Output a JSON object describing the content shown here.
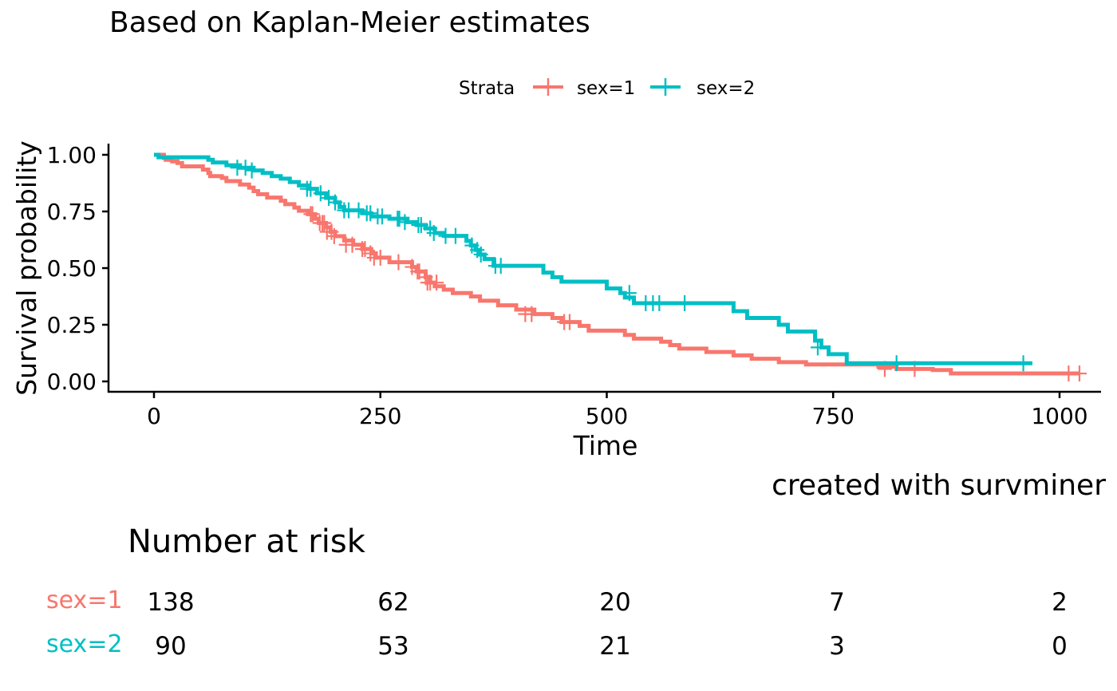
{
  "title": "Based on Kaplan-Meier estimates",
  "caption": "created with survminer",
  "chart_data": {
    "type": "line",
    "subtype": "kaplan-meier-step",
    "xlabel": "Time",
    "ylabel": "Survival probability",
    "xlim": [
      0,
      1022
    ],
    "ylim": [
      0,
      1
    ],
    "x_ticks": [
      0,
      250,
      500,
      750,
      1000
    ],
    "x_tick_labels": [
      "0",
      "250",
      "500",
      "750",
      "1000"
    ],
    "y_ticks": [
      0,
      0.25,
      0.5,
      0.75,
      1.0
    ],
    "y_tick_labels": [
      "0.00",
      "0.25",
      "0.50",
      "0.75",
      "1.00"
    ],
    "grid": false,
    "legend": {
      "title": "Strata",
      "position": "top",
      "entries": [
        "sex=1",
        "sex=2"
      ]
    },
    "colors": {
      "sex=1": "#F8766D",
      "sex=2": "#00BFC4"
    },
    "series": [
      {
        "name": "sex=1",
        "color": "#F8766D",
        "steps": [
          [
            0,
            1.0
          ],
          [
            11,
            0.986
          ],
          [
            13,
            0.978
          ],
          [
            20,
            0.971
          ],
          [
            26,
            0.964
          ],
          [
            31,
            0.949
          ],
          [
            54,
            0.935
          ],
          [
            60,
            0.92
          ],
          [
            62,
            0.906
          ],
          [
            75,
            0.898
          ],
          [
            80,
            0.884
          ],
          [
            95,
            0.869
          ],
          [
            105,
            0.855
          ],
          [
            110,
            0.84
          ],
          [
            115,
            0.826
          ],
          [
            125,
            0.811
          ],
          [
            140,
            0.797
          ],
          [
            145,
            0.782
          ],
          [
            155,
            0.767
          ],
          [
            160,
            0.753
          ],
          [
            170,
            0.738
          ],
          [
            178,
            0.718
          ],
          [
            182,
            0.699
          ],
          [
            190,
            0.68
          ],
          [
            195,
            0.66
          ],
          [
            200,
            0.641
          ],
          [
            210,
            0.622
          ],
          [
            220,
            0.603
          ],
          [
            230,
            0.584
          ],
          [
            240,
            0.565
          ],
          [
            245,
            0.546
          ],
          [
            260,
            0.526
          ],
          [
            285,
            0.505
          ],
          [
            290,
            0.485
          ],
          [
            300,
            0.46
          ],
          [
            305,
            0.436
          ],
          [
            310,
            0.42
          ],
          [
            320,
            0.405
          ],
          [
            330,
            0.39
          ],
          [
            350,
            0.375
          ],
          [
            360,
            0.356
          ],
          [
            380,
            0.336
          ],
          [
            400,
            0.317
          ],
          [
            420,
            0.297
          ],
          [
            440,
            0.28
          ],
          [
            450,
            0.262
          ],
          [
            470,
            0.245
          ],
          [
            480,
            0.224
          ],
          [
            520,
            0.205
          ],
          [
            530,
            0.189
          ],
          [
            560,
            0.175
          ],
          [
            570,
            0.16
          ],
          [
            580,
            0.145
          ],
          [
            610,
            0.13
          ],
          [
            640,
            0.115
          ],
          [
            660,
            0.1
          ],
          [
            690,
            0.085
          ],
          [
            720,
            0.075
          ],
          [
            800,
            0.065
          ],
          [
            820,
            0.055
          ],
          [
            860,
            0.05
          ],
          [
            880,
            0.035
          ],
          [
            1022,
            0.035
          ]
        ],
        "censored": [
          [
            173,
            0.738
          ],
          [
            175,
            0.738
          ],
          [
            183,
            0.699
          ],
          [
            186,
            0.699
          ],
          [
            188,
            0.699
          ],
          [
            191,
            0.66
          ],
          [
            196,
            0.66
          ],
          [
            199,
            0.641
          ],
          [
            212,
            0.603
          ],
          [
            219,
            0.603
          ],
          [
            230,
            0.584
          ],
          [
            233,
            0.584
          ],
          [
            239,
            0.565
          ],
          [
            243,
            0.546
          ],
          [
            250,
            0.546
          ],
          [
            270,
            0.526
          ],
          [
            285,
            0.505
          ],
          [
            291,
            0.485
          ],
          [
            293,
            0.485
          ],
          [
            300,
            0.46
          ],
          [
            302,
            0.436
          ],
          [
            305,
            0.436
          ],
          [
            312,
            0.436
          ],
          [
            410,
            0.297
          ],
          [
            417,
            0.297
          ],
          [
            453,
            0.262
          ],
          [
            459,
            0.262
          ],
          [
            807,
            0.055
          ],
          [
            840,
            0.055
          ],
          [
            1010,
            0.035
          ],
          [
            1022,
            0.035
          ]
        ]
      },
      {
        "name": "sex=2",
        "color": "#00BFC4",
        "steps": [
          [
            0,
            1.0
          ],
          [
            5,
            0.989
          ],
          [
            60,
            0.978
          ],
          [
            65,
            0.966
          ],
          [
            80,
            0.954
          ],
          [
            95,
            0.943
          ],
          [
            110,
            0.931
          ],
          [
            120,
            0.92
          ],
          [
            130,
            0.906
          ],
          [
            140,
            0.895
          ],
          [
            150,
            0.88
          ],
          [
            160,
            0.865
          ],
          [
            170,
            0.85
          ],
          [
            180,
            0.83
          ],
          [
            190,
            0.81
          ],
          [
            200,
            0.79
          ],
          [
            205,
            0.77
          ],
          [
            210,
            0.755
          ],
          [
            230,
            0.742
          ],
          [
            240,
            0.728
          ],
          [
            260,
            0.718
          ],
          [
            280,
            0.703
          ],
          [
            290,
            0.69
          ],
          [
            300,
            0.675
          ],
          [
            310,
            0.655
          ],
          [
            320,
            0.642
          ],
          [
            345,
            0.62
          ],
          [
            350,
            0.6
          ],
          [
            355,
            0.58
          ],
          [
            360,
            0.56
          ],
          [
            365,
            0.54
          ],
          [
            375,
            0.51
          ],
          [
            420,
            0.51
          ],
          [
            430,
            0.48
          ],
          [
            440,
            0.46
          ],
          [
            450,
            0.44
          ],
          [
            500,
            0.41
          ],
          [
            515,
            0.39
          ],
          [
            520,
            0.37
          ],
          [
            530,
            0.345
          ],
          [
            550,
            0.345
          ],
          [
            640,
            0.31
          ],
          [
            655,
            0.28
          ],
          [
            690,
            0.25
          ],
          [
            700,
            0.22
          ],
          [
            730,
            0.18
          ],
          [
            737,
            0.15
          ],
          [
            745,
            0.12
          ],
          [
            765,
            0.08
          ],
          [
            970,
            0.08
          ]
        ],
        "censored": [
          [
            92,
            0.943
          ],
          [
            101,
            0.943
          ],
          [
            108,
            0.931
          ],
          [
            169,
            0.85
          ],
          [
            173,
            0.85
          ],
          [
            184,
            0.83
          ],
          [
            193,
            0.81
          ],
          [
            200,
            0.79
          ],
          [
            210,
            0.755
          ],
          [
            215,
            0.755
          ],
          [
            226,
            0.755
          ],
          [
            235,
            0.742
          ],
          [
            239,
            0.742
          ],
          [
            247,
            0.728
          ],
          [
            252,
            0.728
          ],
          [
            269,
            0.718
          ],
          [
            271,
            0.718
          ],
          [
            277,
            0.703
          ],
          [
            292,
            0.69
          ],
          [
            295,
            0.69
          ],
          [
            305,
            0.675
          ],
          [
            309,
            0.655
          ],
          [
            322,
            0.642
          ],
          [
            333,
            0.642
          ],
          [
            351,
            0.6
          ],
          [
            357,
            0.58
          ],
          [
            361,
            0.56
          ],
          [
            377,
            0.51
          ],
          [
            383,
            0.51
          ],
          [
            525,
            0.39
          ],
          [
            543,
            0.345
          ],
          [
            551,
            0.345
          ],
          [
            558,
            0.345
          ],
          [
            586,
            0.345
          ],
          [
            733,
            0.15
          ],
          [
            820,
            0.08
          ],
          [
            960,
            0.08
          ]
        ]
      }
    ]
  },
  "risk_table": {
    "title": "Number at risk",
    "times": [
      0,
      250,
      500,
      750,
      1000
    ],
    "rows": [
      {
        "label": "sex=1",
        "color": "#F8766D",
        "values": [
          "138",
          "62",
          "20",
          "7",
          "2"
        ]
      },
      {
        "label": "sex=2",
        "color": "#00BFC4",
        "values": [
          "90",
          "53",
          "21",
          "3",
          "0"
        ]
      }
    ]
  }
}
